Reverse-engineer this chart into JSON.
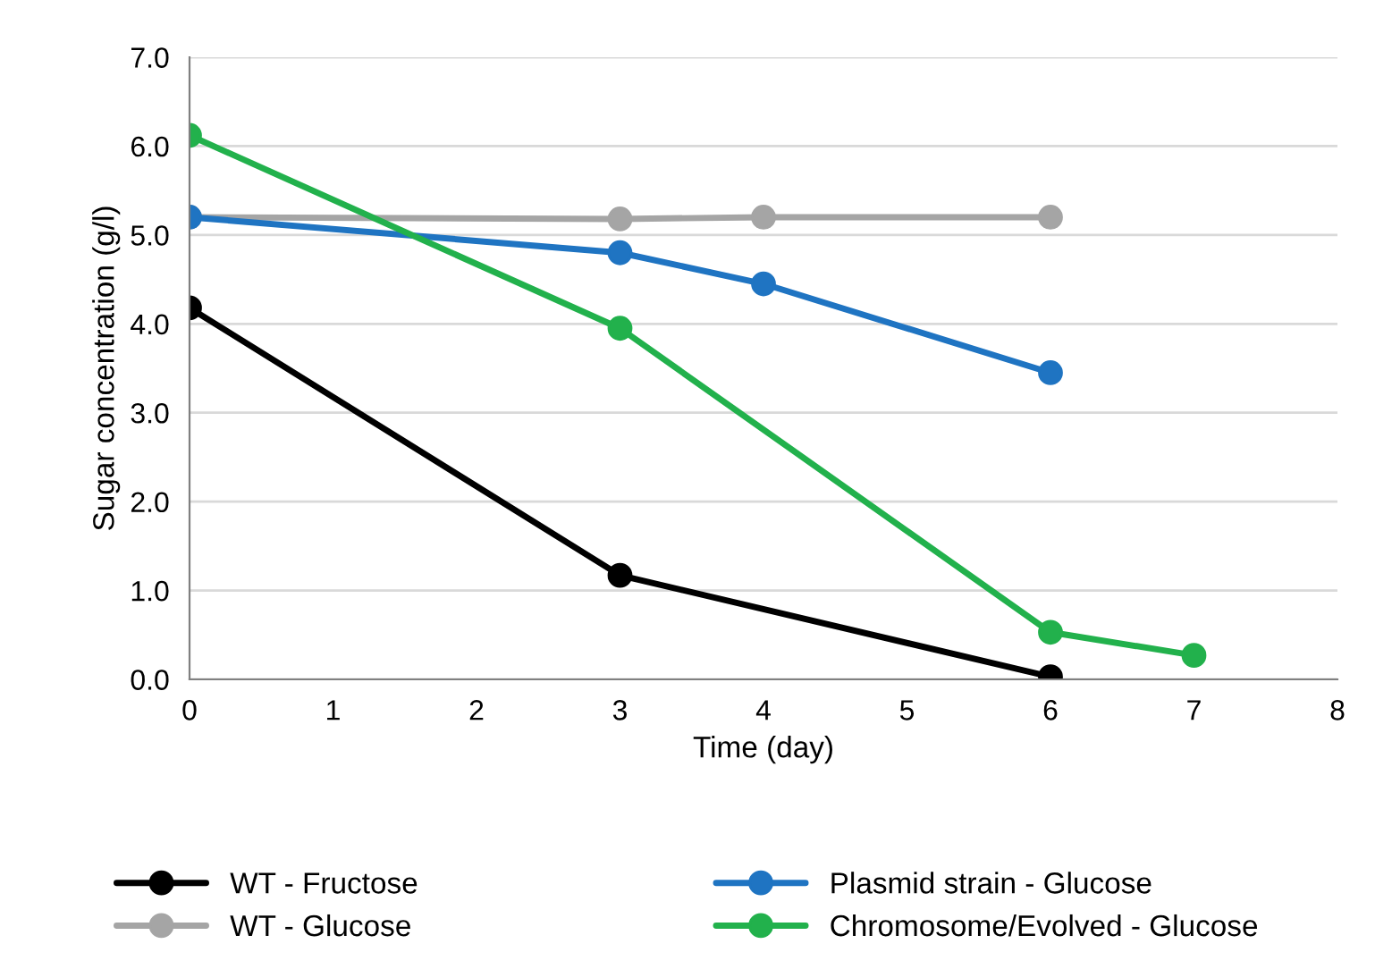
{
  "chart_data": {
    "type": "line",
    "xlabel": "Time (day)",
    "ylabel": "Sugar concentration (g/l)",
    "xlim": [
      0,
      8
    ],
    "xticks": [
      0,
      1,
      2,
      3,
      4,
      5,
      6,
      7,
      8
    ],
    "ylim": [
      0,
      7
    ],
    "yticks": [
      {
        "value": 0,
        "label": "0.0"
      },
      {
        "value": 1,
        "label": "1.0"
      },
      {
        "value": 2,
        "label": "2.0"
      },
      {
        "value": 3,
        "label": "3.0"
      },
      {
        "value": 4,
        "label": "4.0"
      },
      {
        "value": 5,
        "label": "5.0"
      },
      {
        "value": 6,
        "label": "6.0"
      },
      {
        "value": 7,
        "label": "7.0"
      }
    ],
    "grid": "y",
    "legend": "bottom",
    "marker": "circle",
    "line_style": "solid",
    "series": [
      {
        "name": "WT - Fructose",
        "color": "#000000",
        "x": [
          0,
          3,
          6
        ],
        "values": [
          4.18,
          1.17,
          0.03
        ]
      },
      {
        "name": "WT - Glucose",
        "color": "#a5a5a5",
        "x": [
          0,
          3,
          4,
          6
        ],
        "values": [
          5.2,
          5.18,
          5.2,
          5.2
        ]
      },
      {
        "name": "Plasmid strain - Glucose",
        "color": "#1f74c2",
        "x": [
          0,
          3,
          4,
          6
        ],
        "values": [
          5.2,
          4.8,
          4.45,
          3.45
        ]
      },
      {
        "name": "Chromosome/Evolved - Glucose",
        "color": "#22b14c",
        "x": [
          0,
          3,
          6,
          7
        ],
        "values": [
          6.12,
          3.95,
          0.53,
          0.27
        ]
      }
    ]
  }
}
